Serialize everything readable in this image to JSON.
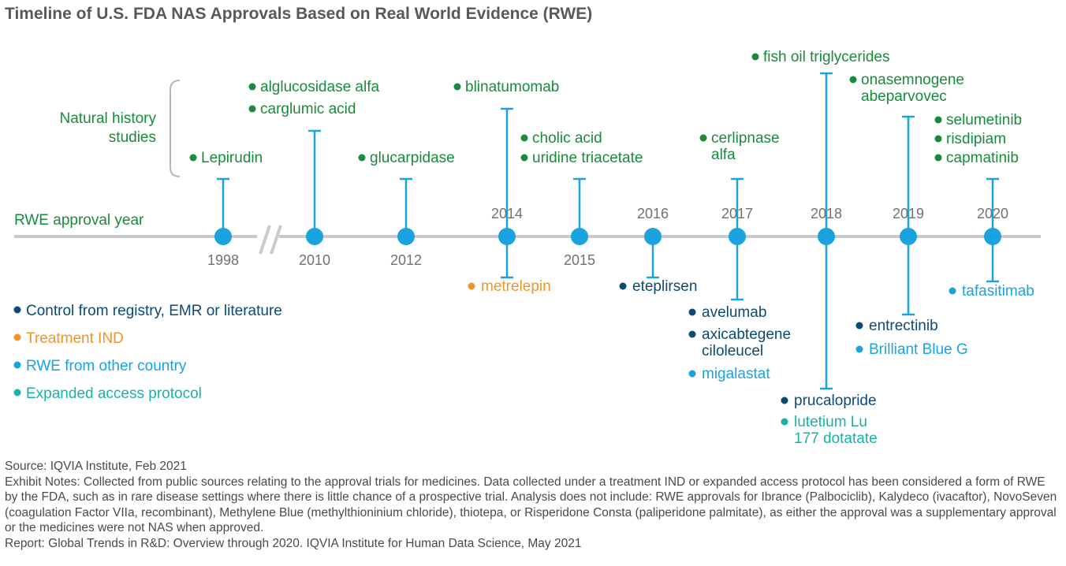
{
  "title": "Timeline of U.S. FDA NAS Approvals Based on Real World Evidence (RWE)",
  "colors": {
    "natural_history": "#1a8a3c",
    "control": "#0b4a73",
    "treatment_ind": "#f0952a",
    "rwe_other_country": "#1aa3de",
    "expanded_access": "#17b2aa",
    "axis": "#c8cacc",
    "stem": "#1aa3de",
    "year_label": "#6d7276"
  },
  "side_labels": {
    "natural_history": [
      "Natural history",
      "studies"
    ],
    "rwe_year": "RWE approval year"
  },
  "legend": [
    {
      "label": "Control from registry, EMR or literature",
      "color": "#0b4a73"
    },
    {
      "label": "Treatment IND",
      "color": "#f0952a"
    },
    {
      "label": "RWE from other country",
      "color": "#1aa3de"
    },
    {
      "label": "Expanded access protocol",
      "color": "#17b2aa"
    }
  ],
  "years": [
    {
      "year": "1998",
      "above": [
        [
          "Lepirudin"
        ]
      ],
      "below": []
    },
    {
      "year": "2010",
      "above": [
        [
          "alglucosidase alfa"
        ],
        [
          "carglumic acid"
        ]
      ],
      "below": []
    },
    {
      "year": "2012",
      "above": [
        [
          "glucarpidase"
        ]
      ],
      "below": []
    },
    {
      "year": "2014",
      "above": [
        [
          "blinatumomab"
        ]
      ],
      "below": [
        {
          "text": [
            "metrelepin"
          ],
          "cat": "treatment_ind"
        }
      ]
    },
    {
      "year": "2015",
      "above": [
        [
          "cholic acid"
        ],
        [
          "uridine triacetate"
        ]
      ],
      "below": []
    },
    {
      "year": "2016",
      "above": [],
      "below": [
        {
          "text": [
            "eteplirsen"
          ],
          "cat": "control"
        }
      ]
    },
    {
      "year": "2017",
      "above": [
        [
          "cerlipnase",
          "alfa"
        ]
      ],
      "below": [
        {
          "text": [
            "avelumab"
          ],
          "cat": "control"
        },
        {
          "text": [
            "axicabtegene",
            "ciloleucel"
          ],
          "cat": "control"
        },
        {
          "text": [
            "migalastat"
          ],
          "cat": "rwe_other_country"
        }
      ]
    },
    {
      "year": "2018",
      "above": [
        [
          "fish oil triglycerides"
        ]
      ],
      "below": [
        {
          "text": [
            "prucalopride"
          ],
          "cat": "control"
        },
        {
          "text": [
            "lutetium Lu",
            "177 dotatate"
          ],
          "cat": "expanded_access"
        }
      ]
    },
    {
      "year": "2019",
      "above": [
        [
          "onasemnogene",
          "abeparvovec"
        ]
      ],
      "below": [
        {
          "text": [
            "entrectinib"
          ],
          "cat": "control"
        },
        {
          "text": [
            "Brilliant Blue G"
          ],
          "cat": "rwe_other_country"
        }
      ]
    },
    {
      "year": "2020",
      "above": [
        [
          "selumetinib"
        ],
        [
          "risdipiam"
        ],
        [
          "capmatinib"
        ]
      ],
      "below": [
        {
          "text": [
            "tafasitimab"
          ],
          "cat": "rwe_other_country"
        }
      ]
    }
  ],
  "notes": {
    "source": "Source: IQVIA Institute, Feb 2021",
    "exhibit_notes": "Exhibit Notes:  Collected from public sources relating to the approval trials for medicines. Data collected under a treatment IND or expanded access protocol has been considered a form of RWE by the FDA, such as in rare disease settings where there is little chance of a prospective trial. Analysis does not include: RWE approvals for Ibrance (Palbociclib), Kalydeco (ivacaftor), NovoSeven (coagulation Factor VIIa, recombinant), Methylene Blue (methylthioninium chloride), thiotepa, or Risperidone Consta (paliperidone palmitate), as either the approval was a supplementary approval or the medicines were not NAS when approved.",
    "report": "Report: Global Trends in R&D: Overview through 2020. IQVIA Institute for Human Data Science, May 2021"
  }
}
